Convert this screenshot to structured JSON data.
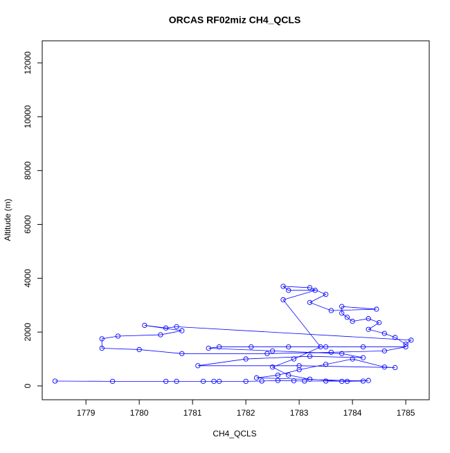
{
  "chart_data": {
    "type": "line",
    "title": "ORCAS RF02miz CH4_QCLS",
    "x_label": "CH4_QCLS",
    "y_label": "Altitude (m)",
    "x": [
      1778.42,
      1779.5,
      1780.5,
      1780.7,
      1781.2,
      1781.4,
      1781.5,
      1782.0,
      1782.3,
      1782.6,
      1782.9,
      1783.1,
      1783.5,
      1783.9,
      1784.2,
      1782.2,
      1782.6,
      1783.0,
      1783.5,
      1784.0,
      1784.6,
      1784.8,
      1783.0,
      1781.1,
      1782.0,
      1783.2,
      1784.2,
      1783.8,
      1782.5,
      1781.3,
      1781.5,
      1782.1,
      1782.8,
      1783.5,
      1784.2,
      1785.0,
      1784.6,
      1783.6,
      1782.4,
      1780.8,
      1780.0,
      1779.3,
      1779.3,
      1779.6,
      1780.4,
      1780.8,
      1780.1,
      1780.5,
      1780.7,
      1785.1,
      1785.0,
      1784.8,
      1784.6,
      1784.3,
      1784.5,
      1784.3,
      1784.0,
      1783.9,
      1783.8,
      1783.8,
      1784.45,
      1783.6,
      1783.2,
      1783.5,
      1783.2,
      1782.7,
      1782.8,
      1783.3,
      1782.7,
      1783.4,
      1782.9,
      1782.5,
      1782.8,
      1783.2,
      1783.8,
      1784.3
    ],
    "series": [
      {
        "name": "CH4_QCLS",
        "color": "#0000ff",
        "values": [
          180,
          170,
          170,
          170,
          170,
          170,
          170,
          170,
          180,
          200,
          190,
          180,
          180,
          170,
          180,
          300,
          400,
          600,
          800,
          1000,
          700,
          680,
          750,
          750,
          1000,
          1100,
          1050,
          1200,
          1300,
          1400,
          1450,
          1450,
          1450,
          1450,
          1450,
          1450,
          1300,
          1250,
          1200,
          1200,
          1350,
          1400,
          1750,
          1850,
          1900,
          2050,
          2250,
          2150,
          2200,
          1700,
          1550,
          1800,
          1950,
          2100,
          2350,
          2500,
          2400,
          2550,
          2700,
          2950,
          2850,
          2800,
          3100,
          3400,
          3650,
          3700,
          3550,
          3550,
          3200,
          1450,
          1000,
          700,
          400,
          250,
          170,
          200
        ]
      }
    ],
    "xlim": [
      1778.18,
      1785.44
    ],
    "ylim": [
      -514,
      12821
    ],
    "xticks": [
      1779,
      1780,
      1781,
      1782,
      1783,
      1784,
      1785
    ],
    "yticks": [
      0,
      2000,
      4000,
      6000,
      8000,
      10000,
      12000
    ]
  }
}
